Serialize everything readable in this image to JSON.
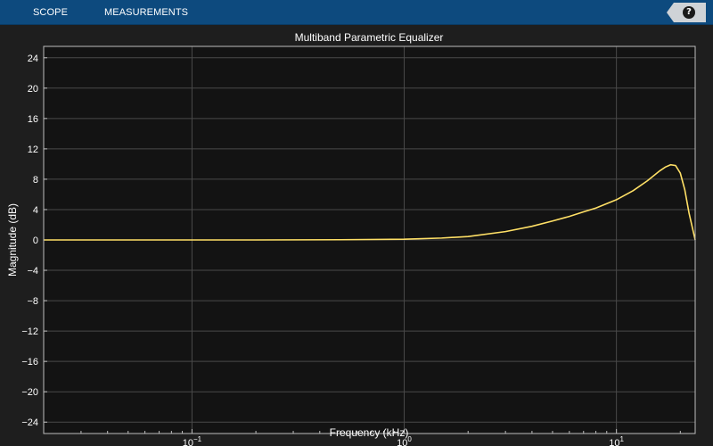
{
  "toolbar": {
    "tabs": [
      {
        "label": "SCOPE"
      },
      {
        "label": "MEASUREMENTS"
      }
    ],
    "help_label": "?"
  },
  "colors": {
    "toolbar": "#0d4a7e",
    "figure_bg": "#1e1e1e",
    "axes_bg": "#131313",
    "grid": "#4a4a4a",
    "curve": "#ffe066"
  },
  "chart_data": {
    "type": "line",
    "title": "Multiband Parametric Equalizer",
    "xlabel": "Frequency (kHz)",
    "ylabel": "Magnitude (dB)",
    "xscale": "log",
    "xlim": [
      0.02,
      23.5
    ],
    "ylim": [
      -25.5,
      25.5
    ],
    "grid": true,
    "y_ticks": [
      24,
      20,
      16,
      12,
      8,
      4,
      0,
      -4,
      -8,
      -12,
      -16,
      -20,
      -24
    ],
    "x_ticks": [
      {
        "value": 0.1,
        "base": "10",
        "exp": "−1"
      },
      {
        "value": 1,
        "base": "10",
        "exp": "0"
      },
      {
        "value": 10,
        "base": "10",
        "exp": "1"
      }
    ],
    "series": [
      {
        "x": [
          0.02,
          0.05,
          0.1,
          0.2,
          0.5,
          1,
          1.5,
          2,
          3,
          4,
          5,
          6,
          7,
          8,
          10,
          12,
          14,
          16,
          17,
          18,
          19,
          20,
          21,
          22,
          23.5
        ],
        "y": [
          0,
          0,
          0,
          0,
          0.03,
          0.1,
          0.25,
          0.45,
          1.1,
          1.8,
          2.5,
          3.1,
          3.7,
          4.2,
          5.3,
          6.5,
          7.8,
          9.1,
          9.6,
          9.9,
          9.8,
          8.8,
          6.6,
          3.5,
          0
        ]
      }
    ]
  }
}
